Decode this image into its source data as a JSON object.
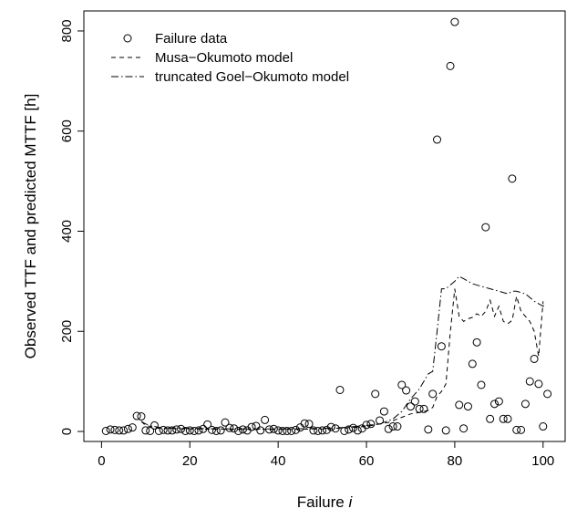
{
  "chart_data": {
    "type": "scatter",
    "title": "",
    "xlabel": "Failure",
    "xlabel_italic": "i",
    "ylabel": "Observed TTF and predicted MTTF [h]",
    "xlim": [
      -4,
      105
    ],
    "ylim": [
      -20,
      840
    ],
    "xticks": [
      0,
      20,
      40,
      60,
      80,
      100
    ],
    "yticks": [
      0,
      200,
      400,
      600,
      800
    ],
    "grid": false,
    "legend_position": "top-left",
    "legend": [
      {
        "label": "Failure data",
        "style": "circle"
      },
      {
        "label": "Musa−Okumoto model",
        "style": "dashed"
      },
      {
        "label": "truncated Goel−Okumoto model",
        "style": "dashdot"
      }
    ],
    "series": [
      {
        "name": "Failure data",
        "kind": "points",
        "x": [
          1,
          2,
          3,
          4,
          5,
          6,
          7,
          8,
          9,
          10,
          11,
          12,
          13,
          14,
          15,
          16,
          17,
          18,
          19,
          20,
          21,
          22,
          23,
          24,
          25,
          26,
          27,
          28,
          29,
          30,
          31,
          32,
          33,
          34,
          35,
          36,
          37,
          38,
          39,
          40,
          41,
          42,
          43,
          44,
          45,
          46,
          47,
          48,
          49,
          50,
          51,
          52,
          53,
          54,
          55,
          56,
          57,
          58,
          59,
          60,
          61,
          62,
          63,
          64,
          65,
          66,
          67,
          68,
          69,
          70,
          71,
          72,
          73,
          74,
          75,
          76,
          77,
          78,
          79,
          80,
          81,
          82,
          83,
          84,
          85,
          86,
          87,
          88,
          89,
          90,
          91,
          92,
          93,
          94,
          95,
          96,
          97,
          98,
          99,
          100,
          101
        ],
        "y": [
          1,
          4,
          3,
          2,
          2,
          5,
          8,
          31,
          30,
          2,
          1,
          12,
          1,
          3,
          2,
          2,
          4,
          5,
          1,
          2,
          1,
          2,
          5,
          14,
          3,
          1,
          2,
          18,
          7,
          6,
          1,
          4,
          2,
          9,
          11,
          2,
          23,
          4,
          5,
          2,
          1,
          1,
          1,
          3,
          8,
          16,
          15,
          2,
          1,
          2,
          3,
          9,
          6,
          83,
          1,
          4,
          7,
          2,
          6,
          13,
          15,
          75,
          22,
          40,
          5,
          10,
          10,
          93,
          82,
          50,
          60,
          45,
          45,
          4,
          75,
          583,
          170,
          2,
          730,
          818,
          53,
          6,
          50,
          135,
          178,
          93,
          408,
          25,
          55,
          60,
          25,
          25,
          505,
          3,
          3,
          55,
          100,
          145,
          95,
          10,
          75
        ]
      },
      {
        "name": "Musa−Okumoto model",
        "kind": "dashed",
        "x": [
          9,
          10,
          11,
          12,
          13,
          14,
          20,
          30,
          40,
          50,
          55,
          60,
          65,
          70,
          72,
          74,
          75,
          76,
          77,
          78,
          79,
          80,
          81,
          82,
          83,
          84,
          85,
          86,
          87,
          88,
          89,
          90,
          91,
          92,
          93,
          94,
          95,
          96,
          97,
          98,
          99,
          100
        ],
        "y": [
          20,
          12,
          10,
          8,
          6,
          6,
          5,
          4,
          4,
          5,
          7,
          10,
          18,
          35,
          38,
          42,
          48,
          70,
          80,
          95,
          200,
          285,
          230,
          220,
          225,
          228,
          235,
          230,
          240,
          262,
          230,
          250,
          220,
          215,
          222,
          270,
          240,
          230,
          220,
          200,
          150,
          260
        ]
      },
      {
        "name": "truncated Goel−Okumoto model",
        "kind": "dashdot",
        "x": [
          9,
          10,
          11,
          12,
          13,
          14,
          20,
          30,
          40,
          50,
          55,
          60,
          63,
          66,
          68,
          70,
          72,
          74,
          75,
          76,
          77,
          78,
          80,
          81,
          82,
          84,
          86,
          88,
          90,
          92,
          93,
          94,
          96,
          98,
          100,
          100.5
        ],
        "y": [
          20,
          15,
          12,
          10,
          8,
          7,
          6,
          5,
          5,
          6,
          8,
          12,
          15,
          25,
          40,
          65,
          85,
          115,
          120,
          200,
          285,
          285,
          300,
          310,
          305,
          295,
          290,
          285,
          280,
          275,
          280,
          280,
          275,
          260,
          250,
          255
        ]
      }
    ]
  }
}
